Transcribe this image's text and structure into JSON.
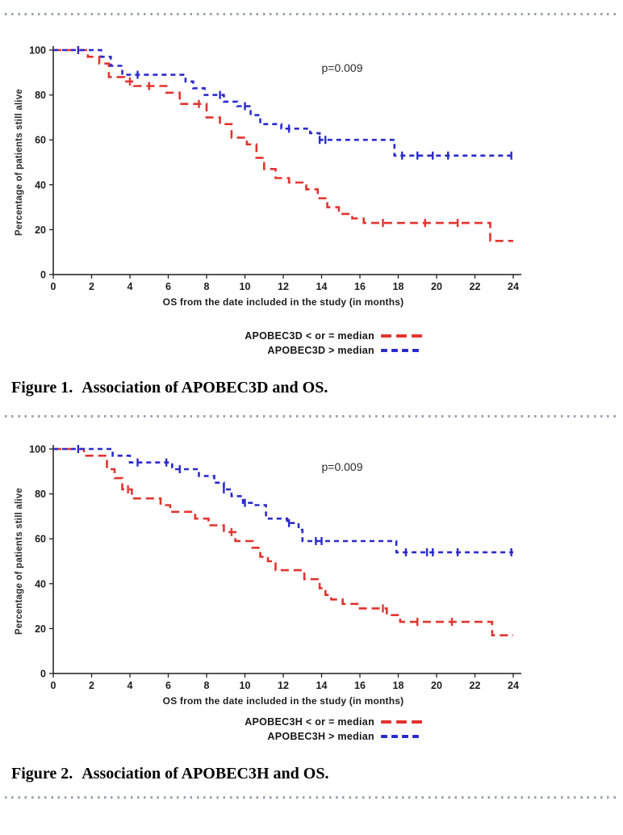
{
  "colors": {
    "red": "#e2342f",
    "blue": "#2b2bcd",
    "axis": "#1f1f1f",
    "dots": "#99a0ab"
  },
  "figure1": {
    "caption_label": "Figure 1.",
    "caption_text": "Association of APOBEC3D and OS."
  },
  "figure2": {
    "caption_label": "Figure 2.",
    "caption_text": "Association of APOBEC3H and OS."
  },
  "chart_data": [
    {
      "type": "line",
      "subtype": "kaplan-meier-step",
      "p_label": "p=0.009",
      "xlabel": "OS from the date included in the study (in months)",
      "ylabel": "Percentage of patients still alive",
      "xlim": [
        0,
        24
      ],
      "ylim": [
        0,
        100
      ],
      "xticks": [
        0,
        2,
        4,
        6,
        8,
        10,
        12,
        14,
        16,
        18,
        20,
        22,
        24
      ],
      "yticks": [
        0,
        20,
        40,
        60,
        80,
        100
      ],
      "grid": false,
      "legend_position": "below",
      "series": [
        {
          "name": "APOBEC3D < or = median",
          "color_key": "red",
          "dash": "10 6",
          "start": [
            0,
            100
          ],
          "steps": [
            [
              1.8,
              97
            ],
            [
              2.4,
              94
            ],
            [
              2.9,
              88
            ],
            [
              3.7,
              86
            ],
            [
              4.2,
              84
            ],
            [
              5.9,
              81
            ],
            [
              6.6,
              76
            ],
            [
              8.0,
              70
            ],
            [
              8.7,
              67
            ],
            [
              9.3,
              61
            ],
            [
              10.1,
              58
            ],
            [
              10.6,
              52
            ],
            [
              11.0,
              47
            ],
            [
              11.6,
              43
            ],
            [
              12.3,
              41
            ],
            [
              13.2,
              38
            ],
            [
              13.8,
              34
            ],
            [
              14.3,
              30
            ],
            [
              14.9,
              27
            ],
            [
              15.6,
              25
            ],
            [
              16.2,
              23
            ],
            [
              22.8,
              15
            ]
          ],
          "censors": [
            [
              4.0,
              86
            ],
            [
              5.0,
              84
            ],
            [
              7.6,
              76
            ],
            [
              17.2,
              23
            ],
            [
              19.4,
              23
            ],
            [
              21.1,
              23
            ]
          ],
          "end_x": 24
        },
        {
          "name": "APOBEC3D > median",
          "color_key": "blue",
          "dash": "6 5",
          "start": [
            0,
            100
          ],
          "steps": [
            [
              2.5,
              97
            ],
            [
              3.0,
              93
            ],
            [
              3.6,
              89
            ],
            [
              6.9,
              86
            ],
            [
              7.3,
              83
            ],
            [
              7.9,
              80
            ],
            [
              8.9,
              77
            ],
            [
              9.6,
              75
            ],
            [
              10.3,
              71
            ],
            [
              10.8,
              67
            ],
            [
              11.9,
              65
            ],
            [
              13.4,
              63
            ],
            [
              13.9,
              60
            ],
            [
              17.8,
              53
            ]
          ],
          "censors": [
            [
              1.3,
              100
            ],
            [
              4.4,
              89
            ],
            [
              8.7,
              80
            ],
            [
              10.0,
              75
            ],
            [
              12.3,
              65
            ],
            [
              13.9,
              60
            ],
            [
              14.2,
              60
            ],
            [
              18.2,
              53
            ],
            [
              19.0,
              53
            ],
            [
              19.8,
              53
            ],
            [
              20.6,
              53
            ],
            [
              23.9,
              53
            ]
          ],
          "end_x": 24
        }
      ]
    },
    {
      "type": "line",
      "subtype": "kaplan-meier-step",
      "p_label": "p=0.009",
      "xlabel": "OS from the date included in the study (in months)",
      "ylabel": "Percentage of patients still alive",
      "xlim": [
        0,
        24
      ],
      "ylim": [
        0,
        100
      ],
      "xticks": [
        0,
        2,
        4,
        6,
        8,
        10,
        12,
        14,
        16,
        18,
        20,
        22,
        24
      ],
      "yticks": [
        0,
        20,
        40,
        60,
        80,
        100
      ],
      "grid": false,
      "legend_position": "below",
      "series": [
        {
          "name": "APOBEC3H < or = median",
          "color_key": "red",
          "dash": "10 6",
          "start": [
            0,
            100
          ],
          "steps": [
            [
              1.6,
              97
            ],
            [
              2.8,
              91
            ],
            [
              3.2,
              87
            ],
            [
              3.6,
              82
            ],
            [
              4.1,
              78
            ],
            [
              5.6,
              75
            ],
            [
              6.1,
              72
            ],
            [
              7.4,
              69
            ],
            [
              8.1,
              66
            ],
            [
              8.9,
              63
            ],
            [
              9.5,
              59
            ],
            [
              10.4,
              56
            ],
            [
              10.8,
              52
            ],
            [
              11.2,
              50
            ],
            [
              11.6,
              46
            ],
            [
              13.1,
              42
            ],
            [
              13.9,
              38
            ],
            [
              14.2,
              35
            ],
            [
              14.5,
              33
            ],
            [
              15.1,
              31
            ],
            [
              16.0,
              29
            ],
            [
              17.4,
              26
            ],
            [
              18.1,
              23
            ],
            [
              22.9,
              17
            ]
          ],
          "censors": [
            [
              3.9,
              82
            ],
            [
              9.3,
              63
            ],
            [
              17.2,
              29
            ],
            [
              19.0,
              23
            ],
            [
              20.8,
              23
            ]
          ],
          "end_x": 24
        },
        {
          "name": "APOBEC3H > median",
          "color_key": "blue",
          "dash": "6 5",
          "start": [
            0,
            100
          ],
          "steps": [
            [
              3.1,
              97
            ],
            [
              4.0,
              94
            ],
            [
              6.2,
              91
            ],
            [
              7.6,
              88
            ],
            [
              8.4,
              85
            ],
            [
              8.9,
              82
            ],
            [
              9.3,
              79
            ],
            [
              9.9,
              76
            ],
            [
              10.5,
              75
            ],
            [
              11.1,
              69
            ],
            [
              12.2,
              67
            ],
            [
              12.8,
              64
            ],
            [
              13.0,
              59
            ],
            [
              17.9,
              54
            ]
          ],
          "censors": [
            [
              1.3,
              100
            ],
            [
              4.4,
              94
            ],
            [
              5.9,
              94
            ],
            [
              6.6,
              91
            ],
            [
              8.9,
              82
            ],
            [
              10.0,
              76
            ],
            [
              12.3,
              67
            ],
            [
              13.7,
              59
            ],
            [
              14.0,
              59
            ],
            [
              18.4,
              54
            ],
            [
              19.5,
              54
            ],
            [
              19.8,
              54
            ],
            [
              21.1,
              54
            ],
            [
              23.9,
              54
            ]
          ],
          "end_x": 24
        }
      ]
    }
  ]
}
